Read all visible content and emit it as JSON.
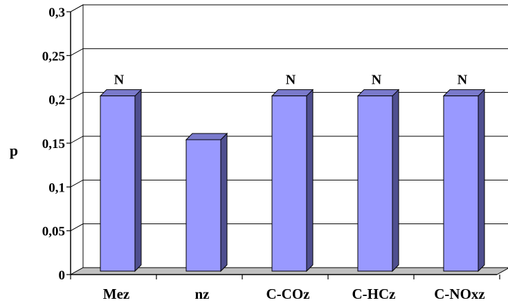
{
  "chart_data": {
    "type": "bar",
    "title": "",
    "xlabel": "",
    "ylabel": "p",
    "categories": [
      "Mez",
      "nz",
      "C-COz",
      "C-HCz",
      "C-NOxz"
    ],
    "values": [
      0.2,
      0.15,
      0.2,
      0.2,
      0.2
    ],
    "data_labels": [
      "N",
      "",
      "N",
      "N",
      "N"
    ],
    "ylim": [
      0,
      0.3
    ],
    "yticks": [
      0,
      0.05,
      0.1,
      0.15,
      0.2,
      0.25,
      0.3
    ],
    "ytick_labels": [
      "0",
      "0,05",
      "0,1",
      "0,15",
      "0,2",
      "0,25",
      "0,3"
    ],
    "grid": true,
    "legend": "none",
    "style": "3d-column"
  },
  "colors": {
    "bar_front": "#9999ff",
    "bar_side": "#4f4f8f",
    "bar_top": "#7a7acc",
    "bar_outline": "#000000",
    "floor": "#c0c0c0",
    "grid": "#000000",
    "background": "#ffffff"
  }
}
